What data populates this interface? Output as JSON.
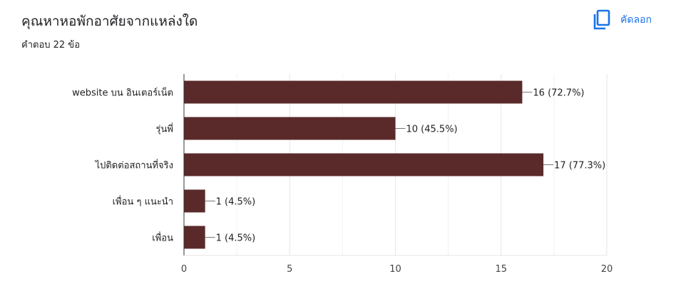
{
  "header": {
    "title": "คุณหาหอพักอาศัยจากแหล่งใด",
    "response_count": "คำตอบ 22 ข้อ",
    "copy_label": "คัดลอก",
    "copy_icon": "copy-icon"
  },
  "colors": {
    "bar": "#5a2a2a",
    "accent": "#1a73e8",
    "grid": "#e8e8e8",
    "axis": "#333333"
  },
  "chart_data": {
    "type": "bar",
    "orientation": "horizontal",
    "categories": [
      "website บน อินเตอร์เน็ต",
      "รุ่นพี่",
      "ไปติดต่อสถานที่จริง",
      "เพื่อน ๆ แนะนำ",
      "เพื่อน"
    ],
    "values": [
      16,
      10,
      17,
      1,
      1
    ],
    "data_labels": [
      "16 (72.7%)",
      "10 (45.5%)",
      "17 (77.3%)",
      "1 (4.5%)",
      "1 (4.5%)"
    ],
    "xlim": [
      0,
      20
    ],
    "xticks": [
      0,
      5,
      10,
      15,
      20
    ],
    "grid": true,
    "legend": "none"
  }
}
